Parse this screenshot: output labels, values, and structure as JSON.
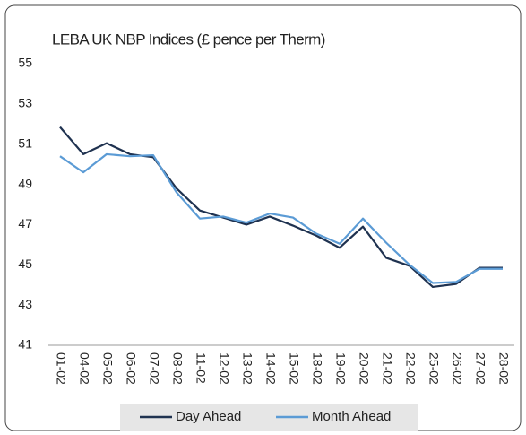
{
  "chart_data": {
    "type": "line",
    "title": "LEBA UK NBP Indices (£ pence per Therm)",
    "categories": [
      "01-02",
      "04-02",
      "05-02",
      "06-02",
      "07-02",
      "08-02",
      "11-02",
      "12-02",
      "13-02",
      "14-02",
      "15-02",
      "18-02",
      "19-02",
      "20-02",
      "21-02",
      "22-02",
      "25-02",
      "26-02",
      "27-02",
      "28-02"
    ],
    "series": [
      {
        "name": "Day Ahead",
        "color": "#1f3250",
        "values": [
          51.85,
          50.5,
          51.05,
          50.5,
          50.35,
          48.8,
          47.7,
          47.35,
          47.0,
          47.4,
          46.95,
          46.45,
          45.85,
          46.9,
          45.35,
          44.95,
          43.9,
          44.05,
          44.85,
          44.85
        ]
      },
      {
        "name": "Month Ahead",
        "color": "#5b9bd5",
        "values": [
          50.4,
          49.6,
          50.5,
          50.4,
          50.45,
          48.6,
          47.3,
          47.4,
          47.1,
          47.55,
          47.35,
          46.55,
          46.05,
          47.3,
          46.1,
          45.0,
          44.1,
          44.15,
          44.8,
          44.8
        ]
      }
    ],
    "ylim": [
      41,
      55
    ],
    "yticks": [
      41,
      43,
      45,
      47,
      49,
      51,
      53,
      55
    ],
    "grid": false,
    "legend": "bottom"
  }
}
